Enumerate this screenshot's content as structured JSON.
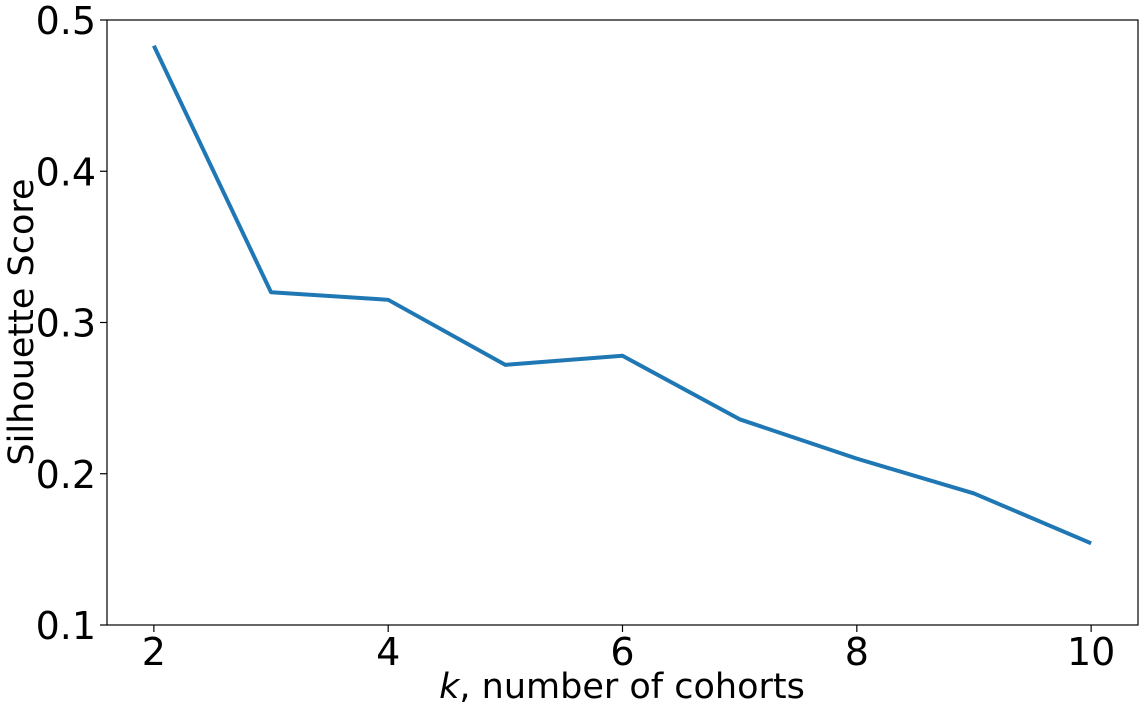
{
  "chart_data": {
    "type": "line",
    "title": "",
    "xlabel_var": "k",
    "xlabel_rest": ", number of cohorts",
    "ylabel": "Silhouette Score",
    "x": [
      2,
      3,
      4,
      5,
      6,
      7,
      8,
      9,
      10
    ],
    "series": [
      {
        "color": "#1f77b4",
        "values": [
          0.483,
          0.32,
          0.315,
          0.272,
          0.278,
          0.236,
          0.21,
          0.187,
          0.154
        ]
      }
    ],
    "xlim": [
      1.6,
      10.4
    ],
    "ylim": [
      0.1,
      0.5
    ],
    "xticks": [
      2,
      4,
      6,
      8,
      10
    ],
    "xtick_labels": [
      "2",
      "4",
      "6",
      "8",
      "10"
    ],
    "yticks": [
      0.1,
      0.2,
      0.3,
      0.4,
      0.5
    ],
    "ytick_labels": [
      "0.1",
      "0.2",
      "0.3",
      "0.4",
      "0.5"
    ],
    "grid": false,
    "legend": false
  }
}
